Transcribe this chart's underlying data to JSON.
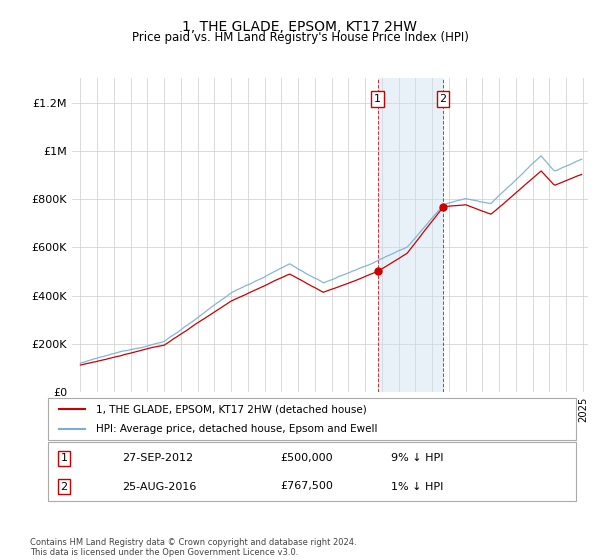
{
  "title": "1, THE GLADE, EPSOM, KT17 2HW",
  "subtitle": "Price paid vs. HM Land Registry's House Price Index (HPI)",
  "footer": "Contains HM Land Registry data © Crown copyright and database right 2024.\nThis data is licensed under the Open Government Licence v3.0.",
  "legend_house": "1, THE GLADE, EPSOM, KT17 2HW (detached house)",
  "legend_hpi": "HPI: Average price, detached house, Epsom and Ewell",
  "sale1_label": "1",
  "sale1_date": "27-SEP-2012",
  "sale1_price": "£500,000",
  "sale1_note": "9% ↓ HPI",
  "sale1_year": 2012.75,
  "sale1_price_val": 500000,
  "sale2_label": "2",
  "sale2_date": "25-AUG-2016",
  "sale2_price": "£767,500",
  "sale2_note": "1% ↓ HPI",
  "sale2_year": 2016.65,
  "sale2_price_val": 767500,
  "house_color": "#cc0000",
  "hpi_color": "#7aadd4",
  "shade_color": "#cce0f0",
  "ylim": [
    0,
    1300000
  ],
  "yticks": [
    0,
    200000,
    400000,
    600000,
    800000,
    1000000,
    1200000
  ],
  "ytick_labels": [
    "£0",
    "£200K",
    "£400K",
    "£600K",
    "£800K",
    "£1M",
    "£1.2M"
  ],
  "x_start_year": 1995,
  "x_end_year": 2025
}
